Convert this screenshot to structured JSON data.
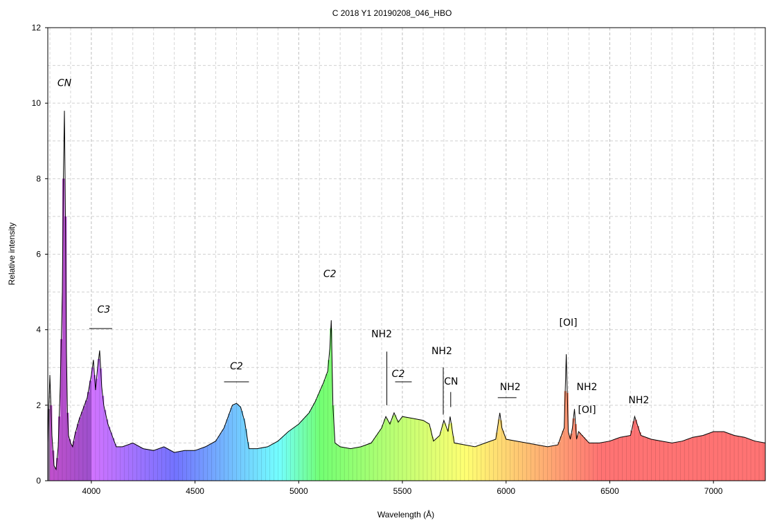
{
  "chart_data": {
    "type": "area",
    "title": "C 2018 Y1 20190208_046_HBO",
    "xlabel": "Wavelength (Å)",
    "ylabel": "Relative intensity",
    "xlim": [
      3790,
      7250
    ],
    "ylim": [
      0,
      12
    ],
    "x_ticks": [
      "4000",
      "4500",
      "5000",
      "5500",
      "6000",
      "6500",
      "7000"
    ],
    "y_ticks": [
      "0",
      "2",
      "4",
      "6",
      "8",
      "10",
      "12"
    ],
    "grid": true,
    "fill": "wavelength-colored spectrum",
    "series": [
      {
        "x": [
          3790,
          3800,
          3810,
          3820,
          3830,
          3840,
          3850,
          3860,
          3865,
          3870,
          3875,
          3880,
          3885,
          3890,
          3900,
          3910,
          3920,
          3940,
          3960,
          3980,
          4000,
          4010,
          4020,
          4030,
          4040,
          4050,
          4060,
          4080,
          4100,
          4120,
          4150,
          4200,
          4250,
          4300,
          4350,
          4400,
          4450,
          4500,
          4550,
          4600,
          4640,
          4660,
          4680,
          4700,
          4720,
          4740,
          4760,
          4800,
          4850,
          4900,
          4950,
          5000,
          5050,
          5080,
          5100,
          5120,
          5140,
          5150,
          5157,
          5165,
          5175,
          5200,
          5250,
          5300,
          5350,
          5400,
          5420,
          5440,
          5460,
          5480,
          5500,
          5550,
          5600,
          5630,
          5650,
          5680,
          5700,
          5720,
          5730,
          5750,
          5800,
          5850,
          5900,
          5950,
          5970,
          5980,
          6000,
          6050,
          6100,
          6150,
          6200,
          6250,
          6280,
          6290,
          6300,
          6310,
          6320,
          6330,
          6340,
          6350,
          6400,
          6450,
          6500,
          6550,
          6600,
          6620,
          6650,
          6700,
          6750,
          6800,
          6850,
          6900,
          6950,
          7000,
          7050,
          7100,
          7150,
          7200,
          7250
        ],
        "values": [
          1.0,
          2.8,
          1.2,
          0.4,
          0.3,
          0.9,
          2.5,
          5.0,
          8.0,
          9.8,
          7.0,
          3.5,
          1.8,
          1.2,
          1.0,
          0.9,
          1.2,
          1.6,
          1.9,
          2.2,
          2.8,
          3.2,
          2.4,
          3.0,
          3.45,
          2.5,
          2.0,
          1.5,
          1.2,
          0.9,
          0.9,
          1.0,
          0.85,
          0.8,
          0.9,
          0.75,
          0.8,
          0.8,
          0.9,
          1.05,
          1.4,
          1.7,
          2.0,
          2.05,
          1.95,
          1.55,
          0.85,
          0.85,
          0.9,
          1.05,
          1.3,
          1.5,
          1.8,
          2.1,
          2.35,
          2.6,
          2.9,
          3.5,
          4.25,
          2.0,
          1.0,
          0.9,
          0.85,
          0.9,
          1.0,
          1.4,
          1.7,
          1.5,
          1.8,
          1.55,
          1.7,
          1.65,
          1.6,
          1.5,
          1.05,
          1.2,
          1.6,
          1.3,
          1.7,
          1.0,
          0.95,
          0.9,
          1.0,
          1.1,
          1.8,
          1.4,
          1.1,
          1.05,
          1.0,
          0.95,
          0.9,
          0.95,
          1.4,
          3.35,
          1.3,
          1.1,
          1.4,
          1.9,
          1.1,
          1.3,
          1.0,
          1.0,
          1.05,
          1.15,
          1.2,
          1.7,
          1.2,
          1.1,
          1.05,
          1.0,
          1.05,
          1.15,
          1.2,
          1.3,
          1.3,
          1.2,
          1.15,
          1.05,
          1.0
        ]
      }
    ],
    "annotations": [
      {
        "text": "CN",
        "x": 3870,
        "y": 10.45,
        "style": "italic"
      },
      {
        "text": "C3",
        "x": 4060,
        "y": 4.45,
        "style": "italic"
      },
      {
        "text": "C2",
        "x": 4700,
        "y": 2.95,
        "style": "italic"
      },
      {
        "text": "C2",
        "x": 5150,
        "y": 5.4,
        "style": "italic"
      },
      {
        "text": "NH2",
        "x": 5400,
        "y": 3.8,
        "style": "normal"
      },
      {
        "text": "C2",
        "x": 5480,
        "y": 2.75,
        "style": "italic"
      },
      {
        "text": "NH2",
        "x": 5690,
        "y": 3.35,
        "style": "normal"
      },
      {
        "text": "CN",
        "x": 5735,
        "y": 2.55,
        "style": "normal"
      },
      {
        "text": "NH2",
        "x": 6020,
        "y": 2.4,
        "style": "normal"
      },
      {
        "text": "[OI]",
        "x": 6300,
        "y": 4.1,
        "style": "normal"
      },
      {
        "text": "NH2",
        "x": 6390,
        "y": 2.4,
        "style": "normal"
      },
      {
        "text": "[OI]",
        "x": 6390,
        "y": 1.8,
        "style": "normal"
      },
      {
        "text": "NH2",
        "x": 6640,
        "y": 2.05,
        "style": "normal"
      }
    ],
    "marker_lines": [
      {
        "x1": 3990,
        "x2": 4100,
        "y1": 4.03,
        "y2": 4.03
      },
      {
        "x1": 4640,
        "x2": 4760,
        "y1": 2.62,
        "y2": 2.62
      },
      {
        "x1": 5465,
        "x2": 5545,
        "y1": 2.62,
        "y2": 2.62
      },
      {
        "x1": 5960,
        "x2": 6050,
        "y1": 2.2,
        "y2": 2.2
      },
      {
        "x1": 5425,
        "x2": 5425,
        "y1": 2.0,
        "y2": 3.42
      },
      {
        "x1": 5697,
        "x2": 5697,
        "y1": 1.75,
        "y2": 3.0
      },
      {
        "x1": 5733,
        "x2": 5733,
        "y1": 1.95,
        "y2": 2.35
      }
    ]
  }
}
